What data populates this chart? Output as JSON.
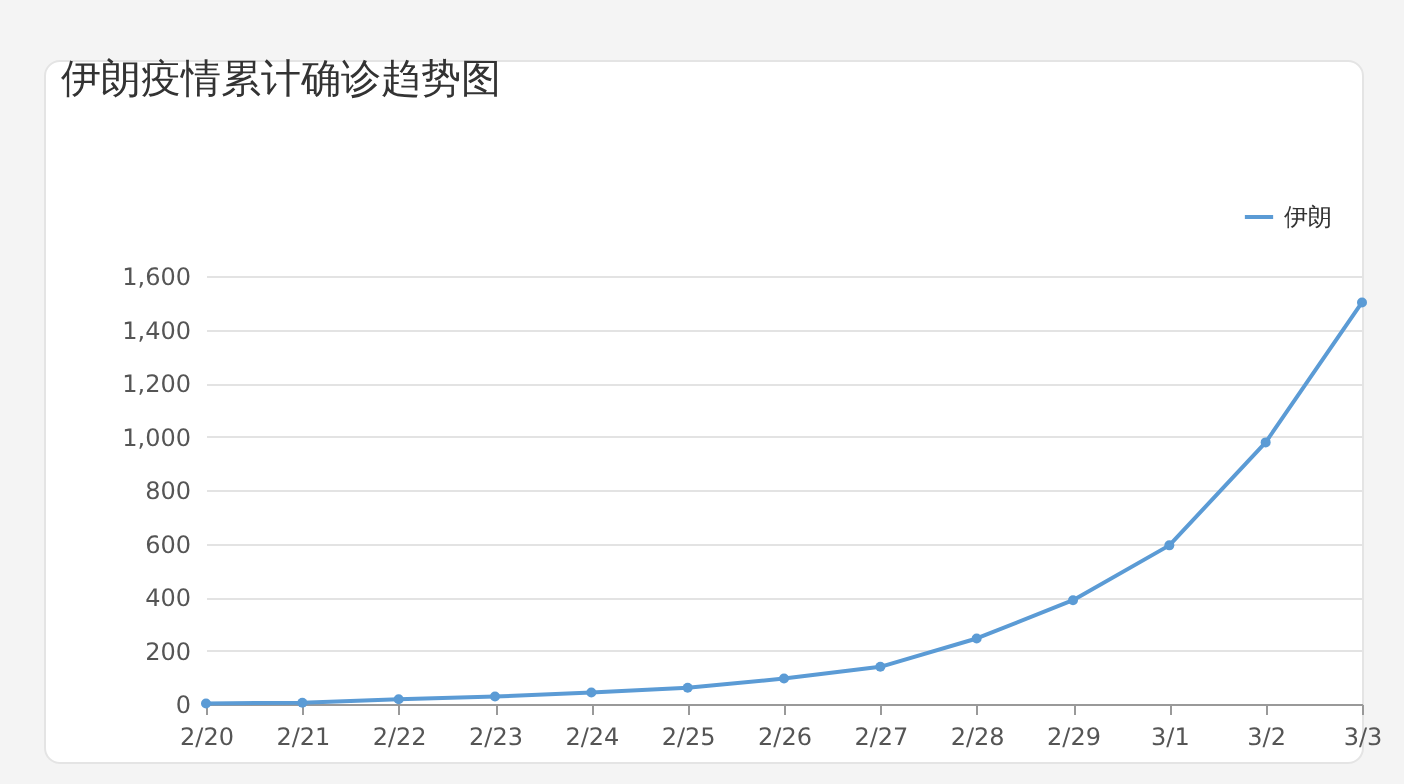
{
  "chart_data": {
    "type": "line",
    "title": "伊朗疫情累计确诊趋势图",
    "categories": [
      "2/20",
      "2/21",
      "2/22",
      "2/23",
      "2/24",
      "2/25",
      "2/26",
      "2/27",
      "2/28",
      "2/29",
      "3/1",
      "3/2",
      "3/3"
    ],
    "series": [
      {
        "name": "伊朗",
        "color": "#5b9bd5",
        "values": [
          2,
          5,
          18,
          28,
          43,
          61,
          95,
          139,
          245,
          388,
          593,
          978,
          1501
        ]
      }
    ],
    "ylim": [
      0,
      1600
    ],
    "yticks": [
      0,
      {
        "value": 200,
        "label": "200"
      },
      {
        "value": 400,
        "label": "400"
      },
      {
        "value": 600,
        "label": "600"
      },
      {
        "value": 800,
        "label": "800"
      },
      {
        "value": 1000,
        "label": "1,000"
      },
      {
        "value": 1200,
        "label": "1,200"
      },
      {
        "value": 1400,
        "label": "1,400"
      },
      {
        "value": 1600,
        "label": "1,600"
      }
    ],
    "grid": "y",
    "legend": "top right",
    "marker": "circle",
    "line_style": "solid"
  }
}
